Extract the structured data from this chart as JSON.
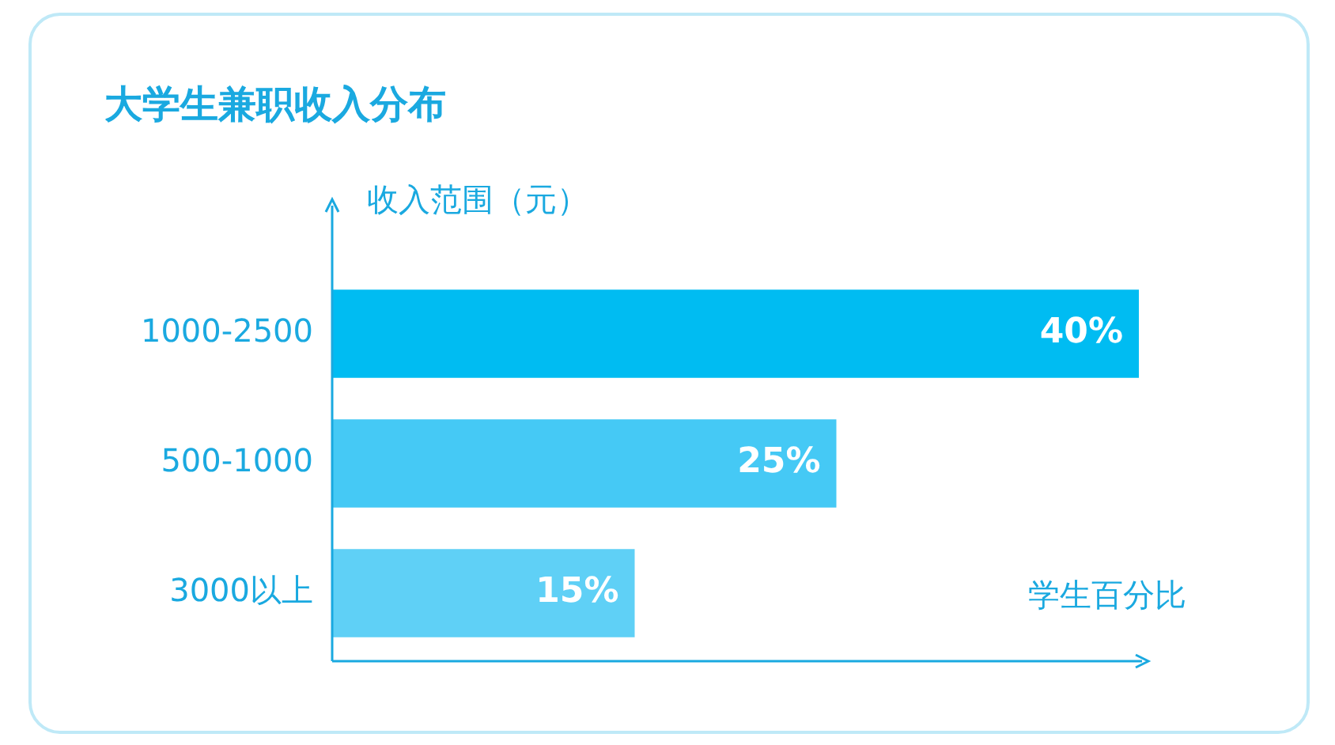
{
  "chart_data": {
    "type": "bar",
    "orientation": "horizontal",
    "title": "大学生兼职收入分布",
    "ylabel": "收入范围（元）",
    "xlabel": "学生百分比",
    "categories": [
      "1000-2500",
      "500-1000",
      "3000以上"
    ],
    "values": [
      40,
      25,
      15
    ],
    "colors": [
      "#00bcf2",
      "#45c9f5",
      "#5fd0f6"
    ],
    "value_labels": [
      "40%",
      "25%",
      "15%"
    ],
    "grid": false,
    "legend": false
  }
}
